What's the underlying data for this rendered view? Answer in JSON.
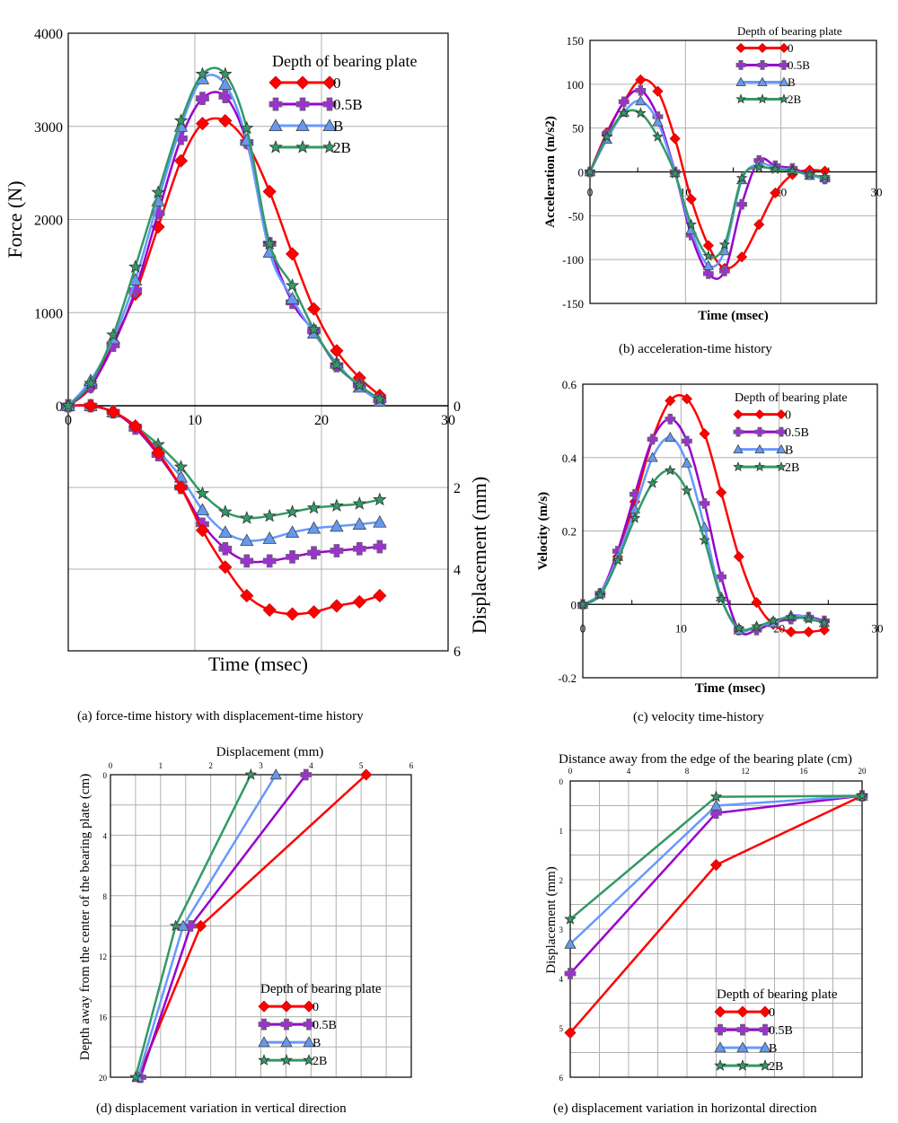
{
  "figure": {
    "legend_title": "Depth of bearing plate",
    "series_names": [
      "0",
      "0.5B",
      "B",
      "2B"
    ],
    "series_colors": {
      "0": "#ff0000",
      "0.5B": "#9900cc",
      "B": "#6699ff",
      "2B": "#339966"
    },
    "marker_colors": {
      "0": "#ff0000",
      "0.5B": "#9933cc",
      "B": "#6699ee",
      "2B": "#339966"
    },
    "markers": {
      "0": "diamond",
      "0.5B": "plus",
      "B": "triangle",
      "2B": "star"
    }
  },
  "captions": {
    "a": "(a) force-time history with displacement-time history",
    "b": "(b) acceleration-time history",
    "c": "(c) velocity time-history",
    "d": "(d) displacement variation in vertical direction",
    "e": "(e) displacement variation in horizontal direction"
  },
  "chart_data": [
    {
      "id": "a",
      "type": "line",
      "title": "(a) force-time history with displacement-time history",
      "xlabel": "Time (msec)",
      "ylabel": "Force (N)",
      "y2label": "Displacement (mm)",
      "xlim": [
        0,
        30
      ],
      "ylim": [
        0,
        4000
      ],
      "y2lim": [
        0,
        6
      ],
      "xticks": [
        "0",
        "10",
        "20",
        "30"
      ],
      "yticks": [
        "0",
        "1000",
        "2000",
        "3000",
        "4000"
      ],
      "y2ticks": [
        "0",
        "2",
        "4",
        "6"
      ],
      "grid": true,
      "legend": "top-right",
      "x": [
        0,
        1.77,
        3.55,
        5.3,
        7.1,
        8.9,
        10.6,
        12.4,
        14.1,
        15.9,
        17.7,
        19.4,
        21.2,
        23.0,
        24.6
      ],
      "force_series": [
        {
          "name": "0",
          "values": [
            0,
            200,
            680,
            1200,
            1920,
            2630,
            3030,
            3060,
            2820,
            2300,
            1630,
            1040,
            590,
            300,
            110
          ]
        },
        {
          "name": "0.5B",
          "values": [
            0,
            210,
            650,
            1240,
            2070,
            2870,
            3300,
            3320,
            2830,
            1740,
            1110,
            800,
            430,
            220,
            60
          ]
        },
        {
          "name": "B",
          "values": [
            0,
            270,
            720,
            1350,
            2200,
            3000,
            3510,
            3450,
            2850,
            1650,
            1150,
            780,
            460,
            200,
            50
          ]
        },
        {
          "name": "2B",
          "values": [
            0,
            240,
            760,
            1490,
            2290,
            3060,
            3560,
            3560,
            2980,
            1740,
            1290,
            820,
            440,
            220,
            70
          ]
        }
      ],
      "displacement_series": [
        {
          "name": "0",
          "values": [
            0,
            0,
            0.15,
            0.5,
            1.15,
            2.0,
            3.05,
            3.95,
            4.65,
            5.0,
            5.1,
            5.05,
            4.9,
            4.8,
            4.65
          ]
        },
        {
          "name": "0.5B",
          "values": [
            0,
            0,
            0.15,
            0.55,
            1.2,
            2.0,
            2.9,
            3.5,
            3.8,
            3.8,
            3.7,
            3.6,
            3.55,
            3.5,
            3.45
          ]
        },
        {
          "name": "B",
          "values": [
            0,
            0,
            0.15,
            0.5,
            1.1,
            1.75,
            2.55,
            3.1,
            3.3,
            3.25,
            3.1,
            3.0,
            2.95,
            2.9,
            2.85
          ]
        },
        {
          "name": "2B",
          "values": [
            0,
            0,
            0.15,
            0.5,
            0.95,
            1.5,
            2.15,
            2.6,
            2.75,
            2.7,
            2.6,
            2.5,
            2.45,
            2.4,
            2.3
          ]
        }
      ]
    },
    {
      "id": "b",
      "type": "line",
      "title": "(b) acceleration-time history",
      "xlabel": "Time (msec)",
      "ylabel": "Acceleration (m/s2)",
      "xlim": [
        0,
        30
      ],
      "ylim": [
        -150,
        150
      ],
      "xticks": [
        "0",
        "10",
        "20",
        "30"
      ],
      "yticks": [
        "-150",
        "-100",
        "-50",
        "0",
        "50",
        "100",
        "150"
      ],
      "grid": true,
      "legend": "top-right",
      "x": [
        0,
        1.77,
        3.55,
        5.3,
        7.1,
        8.9,
        10.6,
        12.4,
        14.1,
        15.9,
        17.7,
        19.4,
        21.2,
        23.0,
        24.6
      ],
      "series": [
        {
          "name": "0",
          "values": [
            0,
            45,
            80,
            105,
            92,
            38,
            -31,
            -84,
            -110,
            -97,
            -60,
            -24,
            -3,
            2,
            1
          ]
        },
        {
          "name": "0.5B",
          "values": [
            0,
            43,
            80,
            93,
            63,
            0,
            -72,
            -116,
            -113,
            -37,
            13,
            7,
            4,
            -3,
            -8
          ]
        },
        {
          "name": "B",
          "values": [
            0,
            37,
            68,
            81,
            57,
            -1,
            -66,
            -107,
            -90,
            -9,
            9,
            5,
            2,
            -4,
            -7
          ]
        },
        {
          "name": "2B",
          "values": [
            0,
            40,
            67,
            67,
            40,
            -2,
            -60,
            -96,
            -83,
            -7,
            5,
            3,
            1,
            -3,
            -6
          ]
        }
      ]
    },
    {
      "id": "c",
      "type": "line",
      "title": "(c) velocity time-history",
      "xlabel": "Time (msec)",
      "ylabel": "Velocity (m/s)",
      "xlim": [
        0,
        30
      ],
      "ylim": [
        -0.2,
        0.6
      ],
      "xticks": [
        "0",
        "10",
        "20",
        "30"
      ],
      "yticks": [
        "-0.2",
        "0",
        "0.2",
        "0.4",
        "0.6"
      ],
      "grid": true,
      "legend": "top-right",
      "x": [
        0,
        1.77,
        3.55,
        5.3,
        7.1,
        8.9,
        10.6,
        12.4,
        14.1,
        15.9,
        17.7,
        19.4,
        21.2,
        23.0,
        24.6
      ],
      "series": [
        {
          "name": "0",
          "values": [
            0,
            0.03,
            0.13,
            0.28,
            0.45,
            0.555,
            0.56,
            0.465,
            0.305,
            0.13,
            0.005,
            -0.055,
            -0.075,
            -0.075,
            -0.07
          ]
        },
        {
          "name": "0.5B",
          "values": [
            0,
            0.03,
            0.145,
            0.3,
            0.45,
            0.505,
            0.445,
            0.275,
            0.075,
            -0.07,
            -0.07,
            -0.05,
            -0.04,
            -0.035,
            -0.045
          ]
        },
        {
          "name": "B",
          "values": [
            0,
            0.03,
            0.13,
            0.26,
            0.4,
            0.455,
            0.385,
            0.21,
            0.02,
            -0.07,
            -0.06,
            -0.05,
            -0.03,
            -0.035,
            -0.05
          ]
        },
        {
          "name": "2B",
          "values": [
            0,
            0.025,
            0.12,
            0.235,
            0.33,
            0.365,
            0.31,
            0.175,
            0.015,
            -0.065,
            -0.06,
            -0.045,
            -0.035,
            -0.04,
            -0.05
          ]
        }
      ]
    },
    {
      "id": "d",
      "type": "line",
      "title": "(d) displacement variation in vertical direction",
      "xlabel": "Displacement (mm)",
      "ylabel": "Depth away from the center of the bearing plate (cm)",
      "xlim": [
        0,
        6
      ],
      "ylim": [
        0,
        20
      ],
      "xticks": [
        "0",
        "1",
        "2",
        "3",
        "4",
        "5",
        "6"
      ],
      "yticks": [
        "0",
        "4",
        "8",
        "12",
        "16",
        "20"
      ],
      "grid": true,
      "legend": "bottom-right",
      "depth": [
        0,
        10,
        20
      ],
      "series": [
        {
          "name": "0",
          "values": [
            5.1,
            1.8,
            0.55
          ]
        },
        {
          "name": "0.5B",
          "values": [
            3.9,
            1.6,
            0.6
          ]
        },
        {
          "name": "B",
          "values": [
            3.3,
            1.45,
            0.55
          ]
        },
        {
          "name": "2B",
          "values": [
            2.8,
            1.3,
            0.5
          ]
        }
      ]
    },
    {
      "id": "e",
      "type": "line",
      "title": "(e) displacement variation in horizontal direction",
      "xlabel": "Distance away from the edge of the bearing plate (cm)",
      "ylabel": "Displacement (mm)",
      "xlim": [
        0,
        20
      ],
      "ylim": [
        0,
        6
      ],
      "xticks": [
        "0",
        "4",
        "8",
        "12",
        "16",
        "20"
      ],
      "yticks": [
        "0",
        "1",
        "2",
        "3",
        "4",
        "5",
        "6"
      ],
      "grid": true,
      "legend": "bottom-right",
      "distance": [
        0,
        10,
        20
      ],
      "series": [
        {
          "name": "0",
          "values": [
            5.1,
            1.7,
            0.3
          ]
        },
        {
          "name": "0.5B",
          "values": [
            3.9,
            0.65,
            0.3
          ]
        },
        {
          "name": "B",
          "values": [
            3.3,
            0.5,
            0.3
          ]
        },
        {
          "name": "2B",
          "values": [
            2.8,
            0.32,
            0.3
          ]
        }
      ]
    }
  ]
}
